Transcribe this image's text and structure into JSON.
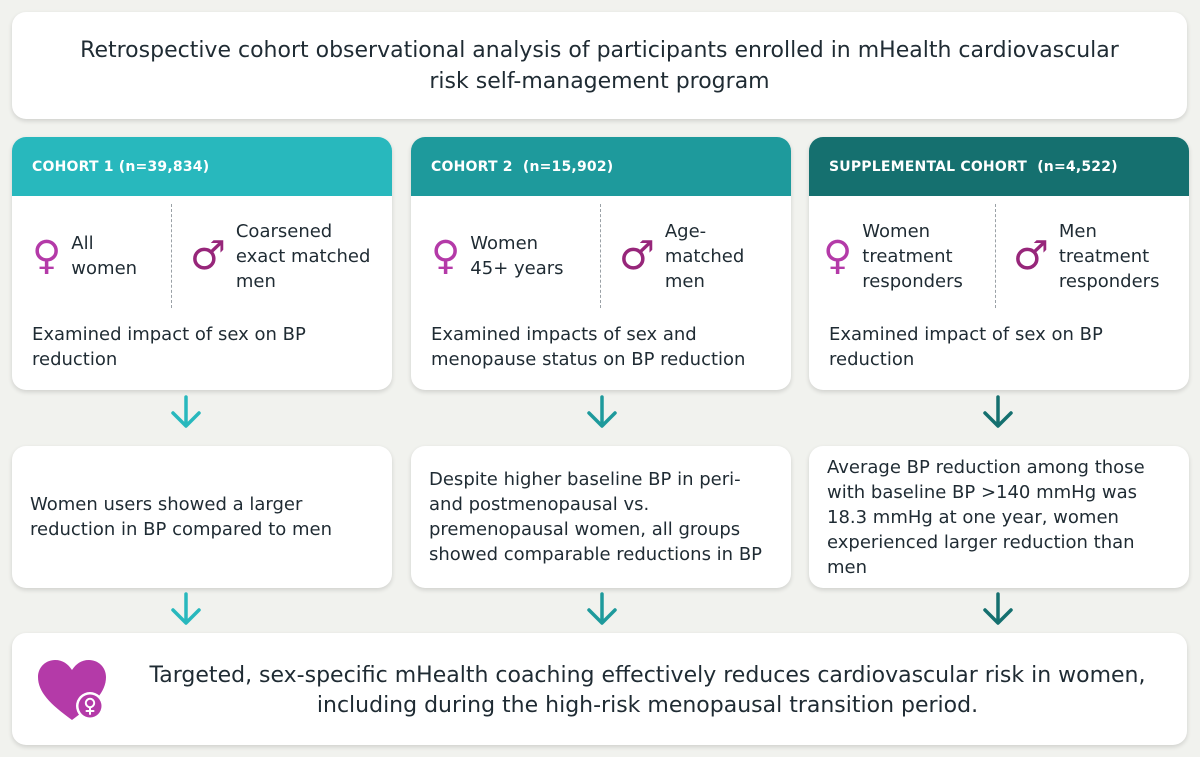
{
  "title": "Retrospective cohort observational analysis of participants enrolled in mHealth cardiovascular risk self-management program",
  "colors": {
    "cohort1": "#28b8bd",
    "cohort2": "#1e9a9c",
    "supplemental": "#15706f",
    "female_symbol": "#b43aa8",
    "male_symbol": "#97267a",
    "heart": "#b43aa8",
    "background": "#f1f2ee"
  },
  "cohorts": [
    {
      "header": "COHORT 1 (n=39,834)",
      "group1": "All women",
      "group2": "Coarsened exact matched men",
      "examined": "Examined impact of sex on BP reduction",
      "result": "Women users showed a larger reduction in BP compared to men"
    },
    {
      "header": "COHORT 2  (n=15,902)",
      "group1": "Women 45+ years",
      "group2": "Age-matched men",
      "examined": "Examined impacts of sex and menopause status on BP reduction",
      "result": "Despite higher baseline BP in peri- and postmenopausal vs. premenopausal women, all groups showed comparable reductions in BP"
    },
    {
      "header": "SUPPLEMENTAL COHORT  (n=4,522)",
      "group1": "Women treatment responders",
      "group2": "Men treatment responders",
      "examined": "Examined impact of sex on BP reduction",
      "result": "Average BP reduction among those with baseline BP >140 mmHg was 18.3 mmHg at one year, women experienced larger reduction than men"
    }
  ],
  "icons": {
    "female": "♀",
    "male": "♂",
    "arrow": "arrow-down-icon",
    "heart": "heart-female-icon"
  },
  "conclusion": "Targeted, sex-specific mHealth coaching effectively reduces cardiovascular risk in women, including during the high-risk menopausal transition period."
}
